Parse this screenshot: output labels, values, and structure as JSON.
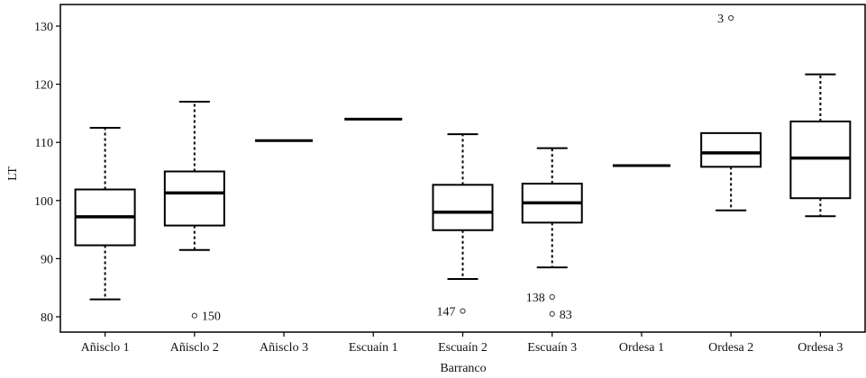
{
  "chart_data": {
    "type": "box",
    "xlabel": "Barranco",
    "ylabel": "LT",
    "ylim": [
      78.2,
      134
    ],
    "yticks": [
      80,
      90,
      100,
      110,
      120,
      130
    ],
    "grid": false,
    "categories": [
      "Añisclo 1",
      "Añisclo 2",
      "Añisclo 3",
      "Escuaín 1",
      "Escuaín 2",
      "Escuaín 3",
      "Ordesa 1",
      "Ordesa 2",
      "Ordesa 3"
    ],
    "boxes": [
      {
        "category": "Añisclo 1",
        "min": 83.0,
        "q1": 92.3,
        "median": 97.2,
        "q3": 101.9,
        "max": 112.5,
        "outliers": []
      },
      {
        "category": "Añisclo 2",
        "min": 91.5,
        "q1": 95.7,
        "median": 101.3,
        "q3": 105.0,
        "max": 117.0,
        "outliers": [
          {
            "value": 80.2,
            "label": "150"
          }
        ]
      },
      {
        "category": "Añisclo 3",
        "min": 110.3,
        "q1": 110.3,
        "median": 110.3,
        "q3": 110.3,
        "max": 110.3,
        "outliers": []
      },
      {
        "category": "Escuaín 1",
        "min": 114.0,
        "q1": 114.0,
        "median": 114.0,
        "q3": 114.0,
        "max": 114.0,
        "outliers": []
      },
      {
        "category": "Escuaín 2",
        "min": 86.5,
        "q1": 94.9,
        "median": 98.0,
        "q3": 102.7,
        "max": 111.4,
        "outliers": [
          {
            "value": 81.0,
            "label": "147"
          }
        ]
      },
      {
        "category": "Escuaín 3",
        "min": 88.5,
        "q1": 96.2,
        "median": 99.6,
        "q3": 102.9,
        "max": 109.0,
        "outliers": [
          {
            "value": 83.4,
            "label": "138"
          },
          {
            "value": 80.5,
            "label": "83"
          }
        ]
      },
      {
        "category": "Ordesa 1",
        "min": 106.0,
        "q1": 106.0,
        "median": 106.0,
        "q3": 106.0,
        "max": 106.0,
        "outliers": []
      },
      {
        "category": "Ordesa 2",
        "min": 98.3,
        "q1": 105.8,
        "median": 108.2,
        "q3": 111.6,
        "max": 111.6,
        "outliers": [
          {
            "value": 131.4,
            "label": "3"
          }
        ]
      },
      {
        "category": "Ordesa 3",
        "min": 97.3,
        "q1": 100.4,
        "median": 107.3,
        "q3": 113.6,
        "max": 121.7,
        "outliers": []
      }
    ]
  }
}
